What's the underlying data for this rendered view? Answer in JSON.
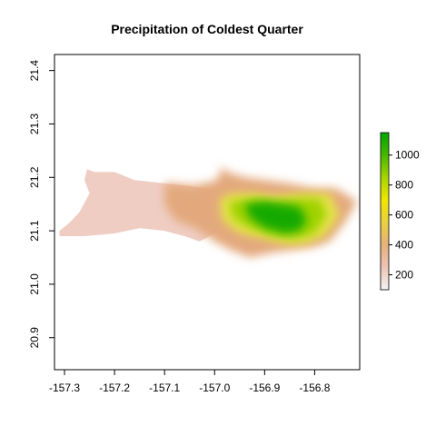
{
  "chart_data": {
    "type": "heatmap",
    "title": "Precipitation of Coldest Quarter",
    "xlabel": "",
    "ylabel": "",
    "xlim": [
      -157.32,
      -156.71
    ],
    "ylim": [
      20.84,
      21.43
    ],
    "x_ticks": [
      -157.3,
      -157.2,
      -157.1,
      -157.0,
      -156.9,
      -156.8
    ],
    "x_tick_labels": [
      "-157.3",
      "-157.2",
      "-157.1",
      "-157.0",
      "-156.9",
      "-156.8"
    ],
    "y_ticks": [
      20.9,
      21.0,
      21.1,
      21.2,
      21.3,
      21.4
    ],
    "y_tick_labels": [
      "20.9",
      "21.0",
      "21.1",
      "21.2",
      "21.3",
      "21.4"
    ],
    "legend": {
      "placement": "right",
      "range": [
        100,
        1150
      ],
      "ticks": [
        200,
        400,
        600,
        800,
        1000
      ],
      "tick_labels": [
        "200",
        "400",
        "600",
        "800",
        "1000"
      ],
      "colors": [
        "#f2f2f2",
        "#eec4b6",
        "#e6b17b",
        "#e9d142",
        "#f0e600",
        "#a8d400",
        "#46b800",
        "#00a600"
      ]
    },
    "regions": [
      {
        "value": 150,
        "fill": "#efcdc2",
        "polygon": [
          [
            -157.31,
            21.1
          ],
          [
            -157.29,
            21.115
          ],
          [
            -157.27,
            21.135
          ],
          [
            -157.25,
            21.17
          ],
          [
            -157.26,
            21.195
          ],
          [
            -157.255,
            21.215
          ],
          [
            -157.24,
            21.21
          ],
          [
            -157.2,
            21.21
          ],
          [
            -157.16,
            21.195
          ],
          [
            -157.11,
            21.19
          ],
          [
            -157.06,
            21.185
          ],
          [
            -157.02,
            21.18
          ],
          [
            -156.99,
            21.175
          ],
          [
            -156.985,
            21.13
          ],
          [
            -157.0,
            21.095
          ],
          [
            -157.03,
            21.08
          ],
          [
            -157.06,
            21.09
          ],
          [
            -157.1,
            21.1
          ],
          [
            -157.15,
            21.105
          ],
          [
            -157.2,
            21.095
          ],
          [
            -157.26,
            21.09
          ],
          [
            -157.31,
            21.09
          ]
        ]
      },
      {
        "value": 350,
        "fill": "#e3a97d",
        "polygon": [
          [
            -157.1,
            21.19
          ],
          [
            -157.04,
            21.185
          ],
          [
            -156.995,
            21.195
          ],
          [
            -156.985,
            21.22
          ],
          [
            -156.975,
            21.21
          ],
          [
            -156.94,
            21.2
          ],
          [
            -156.9,
            21.195
          ],
          [
            -156.86,
            21.19
          ],
          [
            -156.8,
            21.18
          ],
          [
            -156.76,
            21.18
          ],
          [
            -156.74,
            21.17
          ],
          [
            -156.715,
            21.155
          ],
          [
            -156.74,
            21.115
          ],
          [
            -156.77,
            21.08
          ],
          [
            -156.8,
            21.07
          ],
          [
            -156.84,
            21.065
          ],
          [
            -156.88,
            21.06
          ],
          [
            -156.93,
            21.05
          ],
          [
            -156.97,
            21.065
          ],
          [
            -157.0,
            21.08
          ],
          [
            -157.04,
            21.105
          ],
          [
            -157.08,
            21.12
          ],
          [
            -157.1,
            21.15
          ]
        ]
      },
      {
        "value": 600,
        "fill": "#e6e24a",
        "polygon": [
          [
            -156.99,
            21.16
          ],
          [
            -156.965,
            21.17
          ],
          [
            -156.92,
            21.17
          ],
          [
            -156.88,
            21.165
          ],
          [
            -156.82,
            21.17
          ],
          [
            -156.77,
            21.17
          ],
          [
            -156.75,
            21.13
          ],
          [
            -156.78,
            21.09
          ],
          [
            -156.82,
            21.075
          ],
          [
            -156.86,
            21.075
          ],
          [
            -156.9,
            21.085
          ],
          [
            -156.95,
            21.095
          ],
          [
            -156.985,
            21.12
          ]
        ]
      },
      {
        "value": 850,
        "fill": "#9fd300",
        "polygon": [
          [
            -156.97,
            21.155
          ],
          [
            -156.92,
            21.16
          ],
          [
            -156.88,
            21.155
          ],
          [
            -156.83,
            21.16
          ],
          [
            -156.79,
            21.16
          ],
          [
            -156.775,
            21.13
          ],
          [
            -156.8,
            21.095
          ],
          [
            -156.84,
            21.085
          ],
          [
            -156.88,
            21.09
          ],
          [
            -156.93,
            21.105
          ],
          [
            -156.965,
            21.125
          ]
        ]
      },
      {
        "value": 1050,
        "fill": "#18aa00",
        "polygon": [
          [
            -156.94,
            21.15
          ],
          [
            -156.9,
            21.155
          ],
          [
            -156.86,
            21.15
          ],
          [
            -156.83,
            21.145
          ],
          [
            -156.815,
            21.12
          ],
          [
            -156.83,
            21.1
          ],
          [
            -156.86,
            21.095
          ],
          [
            -156.9,
            21.105
          ],
          [
            -156.93,
            21.125
          ]
        ]
      }
    ]
  }
}
